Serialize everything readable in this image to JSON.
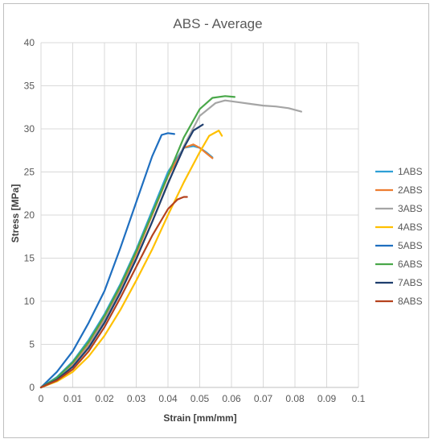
{
  "chart_data": {
    "type": "line",
    "title": "ABS - Average",
    "xlabel": "Strain [mm/mm]",
    "ylabel": "Stress [MPa]",
    "xlim": [
      0,
      0.1
    ],
    "ylim": [
      0,
      40
    ],
    "x_ticks": [
      "0",
      "0.01",
      "0.02",
      "0.03",
      "0.04",
      "0.05",
      "0.06",
      "0.07",
      "0.08",
      "0.09",
      "0.1"
    ],
    "y_ticks": [
      "0",
      "5",
      "10",
      "15",
      "20",
      "25",
      "30",
      "35",
      "40"
    ],
    "grid": true,
    "legend_position": "right",
    "series": [
      {
        "name": "1ABS",
        "color": "#2e9fd6",
        "x": [
          0,
          0.005,
          0.01,
          0.015,
          0.02,
          0.025,
          0.03,
          0.035,
          0.04,
          0.045,
          0.048,
          0.05,
          0.052,
          0.054
        ],
        "y": [
          0,
          1.2,
          3,
          5.5,
          8.5,
          12,
          16,
          20.5,
          25,
          27.8,
          28,
          27.8,
          27.3,
          26.7
        ]
      },
      {
        "name": "2ABS",
        "color": "#ed7d31",
        "x": [
          0,
          0.005,
          0.01,
          0.015,
          0.02,
          0.025,
          0.03,
          0.035,
          0.04,
          0.045,
          0.048,
          0.05,
          0.052,
          0.054
        ],
        "y": [
          0,
          1,
          2.6,
          5,
          8,
          11.5,
          15.5,
          20,
          24.5,
          27.8,
          28.2,
          27.8,
          27.2,
          26.6
        ]
      },
      {
        "name": "3ABS",
        "color": "#a5a5a5",
        "x": [
          0,
          0.005,
          0.01,
          0.015,
          0.02,
          0.025,
          0.03,
          0.035,
          0.04,
          0.045,
          0.05,
          0.055,
          0.058,
          0.062,
          0.066,
          0.07,
          0.074,
          0.078,
          0.082
        ],
        "y": [
          0,
          1,
          2.5,
          4.8,
          7.8,
          11.2,
          15,
          19.2,
          23.6,
          28,
          31.5,
          33,
          33.3,
          33.1,
          32.9,
          32.7,
          32.6,
          32.4,
          32
        ]
      },
      {
        "name": "4ABS",
        "color": "#ffc000",
        "x": [
          0,
          0.005,
          0.01,
          0.015,
          0.02,
          0.025,
          0.03,
          0.035,
          0.04,
          0.045,
          0.05,
          0.053,
          0.056,
          0.057
        ],
        "y": [
          0,
          0.7,
          1.8,
          3.6,
          6,
          9,
          12.4,
          16,
          20,
          23.8,
          27.3,
          29.2,
          29.8,
          29.2
        ]
      },
      {
        "name": "5ABS",
        "color": "#1f6fc0",
        "x": [
          0,
          0.005,
          0.01,
          0.015,
          0.02,
          0.025,
          0.03,
          0.035,
          0.038,
          0.04,
          0.042
        ],
        "y": [
          0,
          1.8,
          4.2,
          7.5,
          11.2,
          16.2,
          21.5,
          26.8,
          29.3,
          29.5,
          29.4
        ]
      },
      {
        "name": "6ABS",
        "color": "#4aa84a",
        "x": [
          0,
          0.005,
          0.01,
          0.015,
          0.02,
          0.025,
          0.03,
          0.035,
          0.04,
          0.045,
          0.05,
          0.054,
          0.058,
          0.061
        ],
        "y": [
          0,
          1.1,
          2.9,
          5.3,
          8.3,
          11.8,
          15.8,
          20.2,
          24.6,
          29,
          32.3,
          33.6,
          33.8,
          33.7
        ]
      },
      {
        "name": "7ABS",
        "color": "#1f3e6e",
        "x": [
          0,
          0.005,
          0.01,
          0.015,
          0.02,
          0.025,
          0.03,
          0.035,
          0.04,
          0.045,
          0.048,
          0.051
        ],
        "y": [
          0,
          0.9,
          2.4,
          4.6,
          7.5,
          11,
          14.9,
          19.2,
          23.7,
          27.8,
          29.8,
          30.5
        ]
      },
      {
        "name": "8ABS",
        "color": "#b5421e",
        "x": [
          0,
          0.005,
          0.01,
          0.015,
          0.02,
          0.025,
          0.03,
          0.035,
          0.04,
          0.043,
          0.045,
          0.046
        ],
        "y": [
          0,
          0.8,
          2.1,
          4.2,
          7,
          10.4,
          14,
          17.6,
          20.7,
          21.8,
          22.1,
          22.1
        ]
      }
    ]
  }
}
